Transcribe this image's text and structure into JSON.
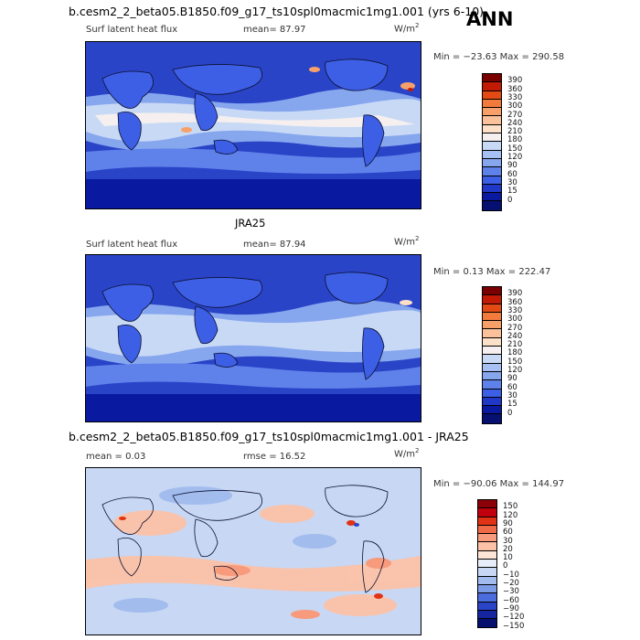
{
  "header": {
    "case_title": "b.cesm2_2_beta05.B1850.f09_g17_ts10spl0macmic1mg1.001 (yrs 6-10)",
    "season": "ANN"
  },
  "panels": [
    {
      "var_label": "Surf latent heat flux",
      "mean_label": "mean=  87.97",
      "units": "W/m",
      "units_exp": "2",
      "minmax": "Min = −23.63 Max = 290.58",
      "colorbar_labels": [
        "390",
        "360",
        "330",
        "300",
        "270",
        "240",
        "210",
        "180",
        "150",
        "120",
        "90",
        "60",
        "30",
        "15",
        "0"
      ]
    },
    {
      "subtitle": "JRA25",
      "var_label": "Surf latent heat flux",
      "mean_label": "mean=  87.94",
      "units": "W/m",
      "units_exp": "2",
      "minmax": "Min =   0.13 Max = 222.47",
      "colorbar_labels": [
        "390",
        "360",
        "330",
        "300",
        "270",
        "240",
        "210",
        "180",
        "150",
        "120",
        "90",
        "60",
        "30",
        "15",
        "0"
      ]
    },
    {
      "subtitle": "b.cesm2_2_beta05.B1850.f09_g17_ts10spl0macmic1mg1.001 - JRA25",
      "var_label": "mean =    0.03",
      "mean_label": "rmse =   16.52",
      "units": "W/m",
      "units_exp": "2",
      "minmax": "Min = −90.06 Max = 144.97",
      "colorbar_labels": [
        "150",
        "120",
        "90",
        "60",
        "30",
        "20",
        "10",
        "0",
        "−10",
        "−20",
        "−30",
        "−60",
        "−90",
        "−120",
        "−150"
      ]
    }
  ],
  "colors": {
    "abs_scale": [
      "#7a0000",
      "#c21a05",
      "#e34a14",
      "#f27b3c",
      "#f8a06a",
      "#fbc19b",
      "#fde0c8",
      "#f5f0ef",
      "#c8d9f5",
      "#a6c0f3",
      "#86a6ee",
      "#5f82ea",
      "#3d5fe5",
      "#2038c8",
      "#0a1aa0",
      "#051070"
    ],
    "diff_scale": [
      "#8c0008",
      "#c0000c",
      "#e03214",
      "#f06a48",
      "#f89a7c",
      "#fcc2a8",
      "#fde6d8",
      "#e8eef9",
      "#c7d7f4",
      "#a2bcee",
      "#7c9ce8",
      "#4a6cdc",
      "#2a44c8",
      "#15249f",
      "#050f6e"
    ]
  }
}
